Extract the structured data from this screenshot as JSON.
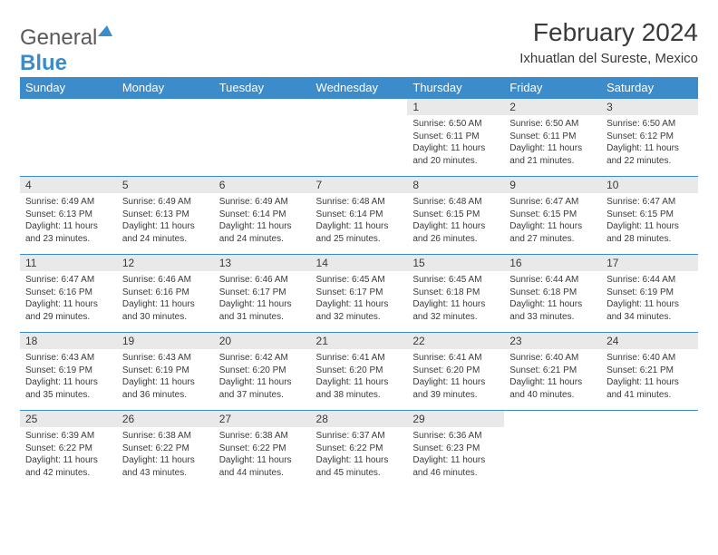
{
  "brand": {
    "part1": "General",
    "part2": "Blue"
  },
  "title": "February 2024",
  "location": "Ixhuatlan del Sureste, Mexico",
  "colors": {
    "header_bg": "#3c8ccc",
    "header_fg": "#ffffff",
    "daynum_bg": "#e9e9e9",
    "text": "#3a3a3a",
    "page_bg": "#ffffff",
    "row_border": "#3c8ccc"
  },
  "typography": {
    "title_fontsize": 28,
    "subtitle_fontsize": 15,
    "header_fontsize": 13,
    "daynum_fontsize": 12,
    "body_fontsize": 10
  },
  "calendar": {
    "type": "table",
    "columns": [
      "Sunday",
      "Monday",
      "Tuesday",
      "Wednesday",
      "Thursday",
      "Friday",
      "Saturday"
    ],
    "start_weekday_index": 4,
    "days": [
      {
        "n": 1,
        "sunrise": "6:50 AM",
        "sunset": "6:11 PM",
        "daylight": "11 hours and 20 minutes."
      },
      {
        "n": 2,
        "sunrise": "6:50 AM",
        "sunset": "6:11 PM",
        "daylight": "11 hours and 21 minutes."
      },
      {
        "n": 3,
        "sunrise": "6:50 AM",
        "sunset": "6:12 PM",
        "daylight": "11 hours and 22 minutes."
      },
      {
        "n": 4,
        "sunrise": "6:49 AM",
        "sunset": "6:13 PM",
        "daylight": "11 hours and 23 minutes."
      },
      {
        "n": 5,
        "sunrise": "6:49 AM",
        "sunset": "6:13 PM",
        "daylight": "11 hours and 24 minutes."
      },
      {
        "n": 6,
        "sunrise": "6:49 AM",
        "sunset": "6:14 PM",
        "daylight": "11 hours and 24 minutes."
      },
      {
        "n": 7,
        "sunrise": "6:48 AM",
        "sunset": "6:14 PM",
        "daylight": "11 hours and 25 minutes."
      },
      {
        "n": 8,
        "sunrise": "6:48 AM",
        "sunset": "6:15 PM",
        "daylight": "11 hours and 26 minutes."
      },
      {
        "n": 9,
        "sunrise": "6:47 AM",
        "sunset": "6:15 PM",
        "daylight": "11 hours and 27 minutes."
      },
      {
        "n": 10,
        "sunrise": "6:47 AM",
        "sunset": "6:15 PM",
        "daylight": "11 hours and 28 minutes."
      },
      {
        "n": 11,
        "sunrise": "6:47 AM",
        "sunset": "6:16 PM",
        "daylight": "11 hours and 29 minutes."
      },
      {
        "n": 12,
        "sunrise": "6:46 AM",
        "sunset": "6:16 PM",
        "daylight": "11 hours and 30 minutes."
      },
      {
        "n": 13,
        "sunrise": "6:46 AM",
        "sunset": "6:17 PM",
        "daylight": "11 hours and 31 minutes."
      },
      {
        "n": 14,
        "sunrise": "6:45 AM",
        "sunset": "6:17 PM",
        "daylight": "11 hours and 32 minutes."
      },
      {
        "n": 15,
        "sunrise": "6:45 AM",
        "sunset": "6:18 PM",
        "daylight": "11 hours and 32 minutes."
      },
      {
        "n": 16,
        "sunrise": "6:44 AM",
        "sunset": "6:18 PM",
        "daylight": "11 hours and 33 minutes."
      },
      {
        "n": 17,
        "sunrise": "6:44 AM",
        "sunset": "6:19 PM",
        "daylight": "11 hours and 34 minutes."
      },
      {
        "n": 18,
        "sunrise": "6:43 AM",
        "sunset": "6:19 PM",
        "daylight": "11 hours and 35 minutes."
      },
      {
        "n": 19,
        "sunrise": "6:43 AM",
        "sunset": "6:19 PM",
        "daylight": "11 hours and 36 minutes."
      },
      {
        "n": 20,
        "sunrise": "6:42 AM",
        "sunset": "6:20 PM",
        "daylight": "11 hours and 37 minutes."
      },
      {
        "n": 21,
        "sunrise": "6:41 AM",
        "sunset": "6:20 PM",
        "daylight": "11 hours and 38 minutes."
      },
      {
        "n": 22,
        "sunrise": "6:41 AM",
        "sunset": "6:20 PM",
        "daylight": "11 hours and 39 minutes."
      },
      {
        "n": 23,
        "sunrise": "6:40 AM",
        "sunset": "6:21 PM",
        "daylight": "11 hours and 40 minutes."
      },
      {
        "n": 24,
        "sunrise": "6:40 AM",
        "sunset": "6:21 PM",
        "daylight": "11 hours and 41 minutes."
      },
      {
        "n": 25,
        "sunrise": "6:39 AM",
        "sunset": "6:22 PM",
        "daylight": "11 hours and 42 minutes."
      },
      {
        "n": 26,
        "sunrise": "6:38 AM",
        "sunset": "6:22 PM",
        "daylight": "11 hours and 43 minutes."
      },
      {
        "n": 27,
        "sunrise": "6:38 AM",
        "sunset": "6:22 PM",
        "daylight": "11 hours and 44 minutes."
      },
      {
        "n": 28,
        "sunrise": "6:37 AM",
        "sunset": "6:22 PM",
        "daylight": "11 hours and 45 minutes."
      },
      {
        "n": 29,
        "sunrise": "6:36 AM",
        "sunset": "6:23 PM",
        "daylight": "11 hours and 46 minutes."
      }
    ],
    "labels": {
      "sunrise": "Sunrise:",
      "sunset": "Sunset:",
      "daylight": "Daylight:"
    }
  }
}
